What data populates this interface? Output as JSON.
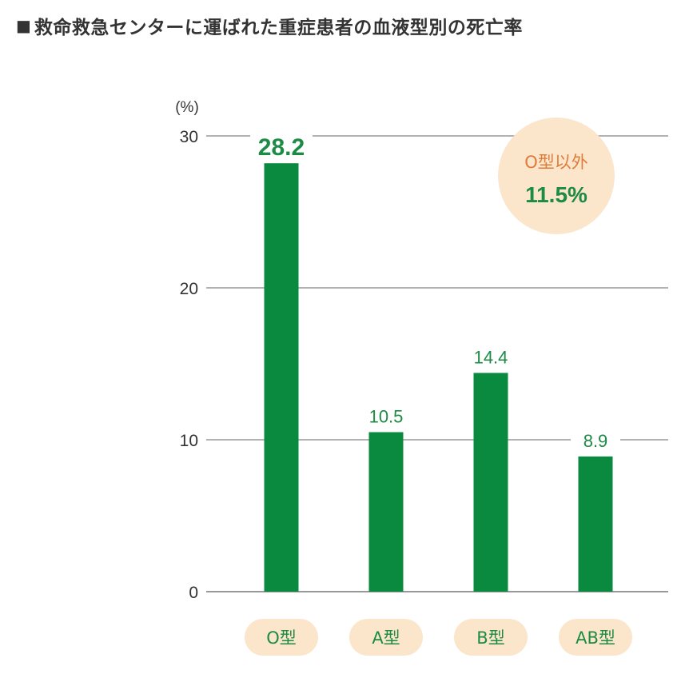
{
  "title": {
    "marker": "■",
    "text": "救命救急センターに運ばれた重症患者の血液型別の死亡率"
  },
  "chart_data": {
    "type": "bar",
    "title": "救命救急センターに運ばれた重症患者の血液型別の死亡率",
    "unit_label": "(%)",
    "categories": [
      "O型",
      "A型",
      "B型",
      "AB型"
    ],
    "values": [
      28.2,
      10.5,
      14.4,
      8.9
    ],
    "value_labels": [
      "28.2",
      "10.5",
      "14.4",
      "8.9"
    ],
    "ylim": [
      0,
      30
    ],
    "yticks": [
      "0",
      "10",
      "20",
      "30"
    ],
    "grid": true,
    "annotation": {
      "label": "O型以外",
      "value": "11.5%",
      "placement": "top-right"
    }
  },
  "colors": {
    "bar": "#0a8a3f",
    "value_text": "#1d8a45",
    "grid": "#999999",
    "category_pill": "#fbe6cc",
    "annotation_circle": "#fbe6cc",
    "annotation_label": "#e07b39"
  }
}
